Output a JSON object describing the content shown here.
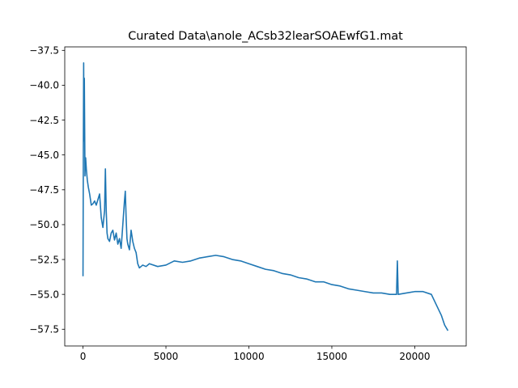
{
  "chart_data": {
    "type": "line",
    "title": "Curated Data\\anole_ACsb32learSOAEwfG1.mat",
    "xlabel": "",
    "ylabel": "",
    "xlim": [
      -1100,
      23100
    ],
    "ylim": [
      -58.7,
      -37.25
    ],
    "xticks": [
      0,
      5000,
      10000,
      15000,
      20000
    ],
    "xtick_labels": [
      "0",
      "5000",
      "10000",
      "15000",
      "20000"
    ],
    "yticks": [
      -57.5,
      -55.0,
      -52.5,
      -50.0,
      -47.5,
      -45.0,
      -42.5,
      -40.0,
      -37.5
    ],
    "ytick_labels": [
      "−57.5",
      "−55.0",
      "−52.5",
      "−50.0",
      "−47.5",
      "−45.0",
      "−42.5",
      "−40.0",
      "−37.5"
    ],
    "grid": false,
    "line_color": "#1f77b4",
    "series": [
      {
        "x": [
          0,
          20,
          40,
          60,
          80,
          100,
          120,
          140,
          160,
          200,
          260,
          320,
          400,
          500,
          600,
          700,
          800,
          900,
          1000,
          1100,
          1200,
          1300,
          1350,
          1400,
          1450,
          1500,
          1600,
          1700,
          1800,
          1900,
          2000,
          2100,
          2200,
          2300,
          2400,
          2500,
          2550,
          2600,
          2650,
          2700,
          2800,
          2900,
          3000,
          3100,
          3200,
          3300,
          3400,
          3500,
          3600,
          3800,
          4000,
          4500,
          5000,
          5500,
          6000,
          6500,
          7000,
          7500,
          8000,
          8500,
          9000,
          9500,
          10000,
          10500,
          11000,
          11500,
          12000,
          12500,
          13000,
          13500,
          14000,
          14500,
          15000,
          15500,
          16000,
          16500,
          17000,
          17500,
          18000,
          18500,
          18900,
          18950,
          19000,
          19500,
          20000,
          20500,
          21000,
          21200,
          21400,
          21600,
          21800,
          22000
        ],
        "y": [
          -53.7,
          -45.0,
          -38.4,
          -44.0,
          -39.5,
          -43.0,
          -46.5,
          -45.5,
          -45.2,
          -46.0,
          -46.8,
          -47.3,
          -47.8,
          -48.6,
          -48.5,
          -48.3,
          -48.6,
          -48.2,
          -47.8,
          -49.5,
          -50.2,
          -49.0,
          -46.0,
          -49.0,
          -50.6,
          -51.0,
          -51.2,
          -50.6,
          -50.4,
          -51.1,
          -50.6,
          -51.4,
          -51.0,
          -51.7,
          -50.0,
          -48.3,
          -47.6,
          -49.5,
          -51.0,
          -51.4,
          -51.8,
          -50.4,
          -51.2,
          -51.7,
          -52.0,
          -52.8,
          -53.1,
          -53.0,
          -52.9,
          -53.0,
          -52.8,
          -53.0,
          -52.9,
          -52.6,
          -52.7,
          -52.6,
          -52.4,
          -52.3,
          -52.2,
          -52.3,
          -52.5,
          -52.6,
          -52.8,
          -53.0,
          -53.2,
          -53.3,
          -53.5,
          -53.6,
          -53.8,
          -53.9,
          -54.1,
          -54.1,
          -54.3,
          -54.4,
          -54.6,
          -54.7,
          -54.8,
          -54.9,
          -54.9,
          -55.0,
          -55.0,
          -52.6,
          -55.0,
          -54.9,
          -54.8,
          -54.8,
          -55.0,
          -55.5,
          -56.0,
          -56.5,
          -57.2,
          -57.6
        ]
      }
    ]
  }
}
